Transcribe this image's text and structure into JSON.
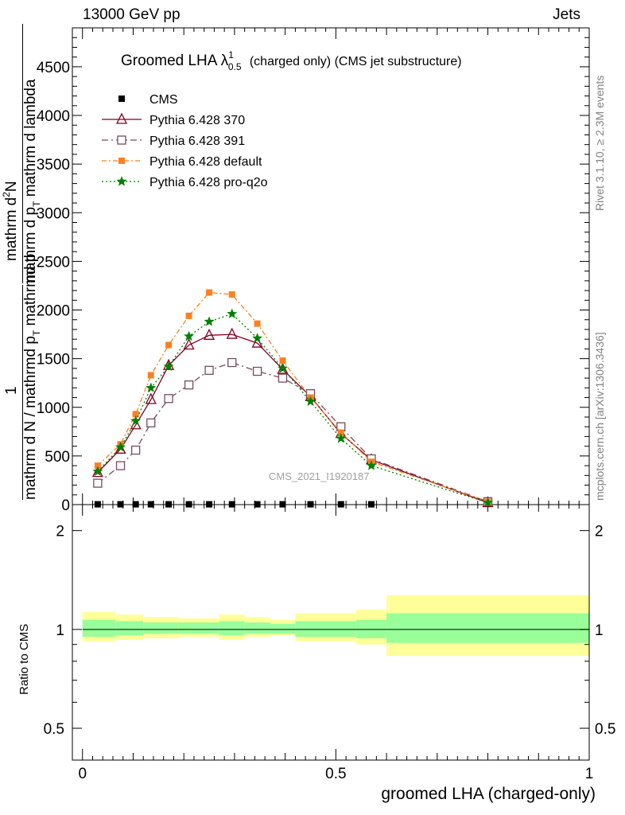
{
  "header": {
    "energy_label": "13000 GeV pp",
    "process_label": "Jets"
  },
  "side": {
    "rivet_label": "Rivet 3.1.10, ≥ 2.3M events",
    "mcplots_label": "mcplots.cern.ch [arXiv:1306.3436]"
  },
  "chart_data": {
    "type": "line",
    "title": {
      "main": "Groomed LHA",
      "symbol": "λ",
      "superscript": "1",
      "subscript": "0.5",
      "suffix": "(charged only) (CMS jet substructure)"
    },
    "watermark": "CMS_2021_I1920187",
    "ylabel_top": {
      "numerator_1": "1",
      "denominator_1": "mathrm d N / mathrmd p",
      "denominator_1_sub": "T",
      "denominator_1_end": " mathrmd p",
      "numerator_2": "mathrm d",
      "numerator_2_sup": "2",
      "numerator_2_rest": "N",
      "denominator_2": "mathrm d p",
      "denominator_2_sub": "T",
      "denominator_2_end": " mathrm d lambda"
    },
    "ylabel_top_lines": [
      "1",
      "mathrm d N / mathrmd p",
      "T",
      " mathrmd p",
      "mathrm d",
      "N",
      "mathrm d p",
      "T",
      " mathrm d lambda"
    ],
    "ylabel_bottom": "Ratio to CMS",
    "xlabel": "groomed LHA (charged-only)",
    "xlim": [
      -0.02,
      1.0
    ],
    "top_ylim": [
      0,
      4900
    ],
    "top_yticks": [
      0,
      500,
      1000,
      1500,
      2000,
      2500,
      3000,
      3500,
      4000,
      4500
    ],
    "top_ytick_labels": [
      "0",
      "500",
      "1000",
      "1500",
      "2000",
      "2500",
      "3000",
      "3500",
      "4000",
      "4500"
    ],
    "bottom_ylim": [
      0.4,
      2.4
    ],
    "bottom_ytick_labels": [
      {
        "value": 0.5,
        "label": "0.5"
      },
      {
        "value": 1,
        "label": "1"
      },
      {
        "value": 2,
        "label": "2"
      }
    ],
    "xtick_labels": [
      {
        "value": 0,
        "label": "0"
      },
      {
        "value": 0.5,
        "label": "0.5"
      },
      {
        "value": 1,
        "label": "1"
      }
    ],
    "x": [
      0.03,
      0.075,
      0.105,
      0.135,
      0.17,
      0.21,
      0.25,
      0.295,
      0.345,
      0.395,
      0.45,
      0.51,
      0.57,
      0.8
    ],
    "cms": {
      "name": "CMS",
      "values": [
        3,
        3,
        3,
        3,
        3,
        3,
        3,
        3,
        3,
        3,
        3,
        3,
        3,
        3
      ],
      "color": "#000000"
    },
    "series": [
      {
        "name": "Pythia 6.428 370",
        "color": "#800020",
        "dash": "",
        "marker": "triangle",
        "values": [
          330,
          570,
          820,
          1080,
          1430,
          1640,
          1740,
          1750,
          1660,
          1390,
          1110,
          730,
          460,
          20
        ]
      },
      {
        "name": "Pythia 6.428 391",
        "color": "#7a4a5e",
        "dash": "8,4,2,4",
        "marker": "square",
        "values": [
          220,
          400,
          560,
          840,
          1090,
          1230,
          1380,
          1460,
          1370,
          1300,
          1140,
          800,
          470,
          30
        ]
      },
      {
        "name": "Pythia 6.428 default",
        "color": "#ff8020",
        "dash": "6,3,2,3",
        "marker": "filled-square",
        "values": [
          400,
          620,
          930,
          1330,
          1640,
          1940,
          2180,
          2160,
          1860,
          1480,
          1100,
          740,
          440,
          30
        ]
      },
      {
        "name": "Pythia 6.428 pro-q2o",
        "color": "#008000",
        "dash": "2,3",
        "marker": "star",
        "values": [
          340,
          590,
          860,
          1200,
          1420,
          1730,
          1880,
          1960,
          1710,
          1400,
          1060,
          680,
          400,
          20
        ]
      }
    ],
    "ratio_bands": [
      {
        "x0": 0.0,
        "x1": 0.065,
        "inner": [
          0.95,
          1.07
        ],
        "outer": [
          0.92,
          1.13
        ]
      },
      {
        "x0": 0.065,
        "x1": 0.12,
        "inner": [
          0.96,
          1.06
        ],
        "outer": [
          0.93,
          1.11
        ]
      },
      {
        "x0": 0.12,
        "x1": 0.19,
        "inner": [
          0.97,
          1.05
        ],
        "outer": [
          0.94,
          1.09
        ]
      },
      {
        "x0": 0.19,
        "x1": 0.27,
        "inner": [
          0.97,
          1.05
        ],
        "outer": [
          0.95,
          1.08
        ]
      },
      {
        "x0": 0.27,
        "x1": 0.32,
        "inner": [
          0.96,
          1.06
        ],
        "outer": [
          0.93,
          1.11
        ]
      },
      {
        "x0": 0.32,
        "x1": 0.37,
        "inner": [
          0.97,
          1.05
        ],
        "outer": [
          0.95,
          1.09
        ]
      },
      {
        "x0": 0.37,
        "x1": 0.42,
        "inner": [
          0.97,
          1.04
        ],
        "outer": [
          0.96,
          1.07
        ]
      },
      {
        "x0": 0.42,
        "x1": 0.54,
        "inner": [
          0.95,
          1.06
        ],
        "outer": [
          0.92,
          1.12
        ]
      },
      {
        "x0": 0.54,
        "x1": 0.6,
        "inner": [
          0.94,
          1.07
        ],
        "outer": [
          0.9,
          1.15
        ]
      },
      {
        "x0": 0.6,
        "x1": 1.0,
        "inner": [
          0.91,
          1.12
        ],
        "outer": [
          0.83,
          1.27
        ]
      }
    ],
    "band_colors": {
      "inner": "#99ff99",
      "outer": "#ffff99"
    }
  }
}
